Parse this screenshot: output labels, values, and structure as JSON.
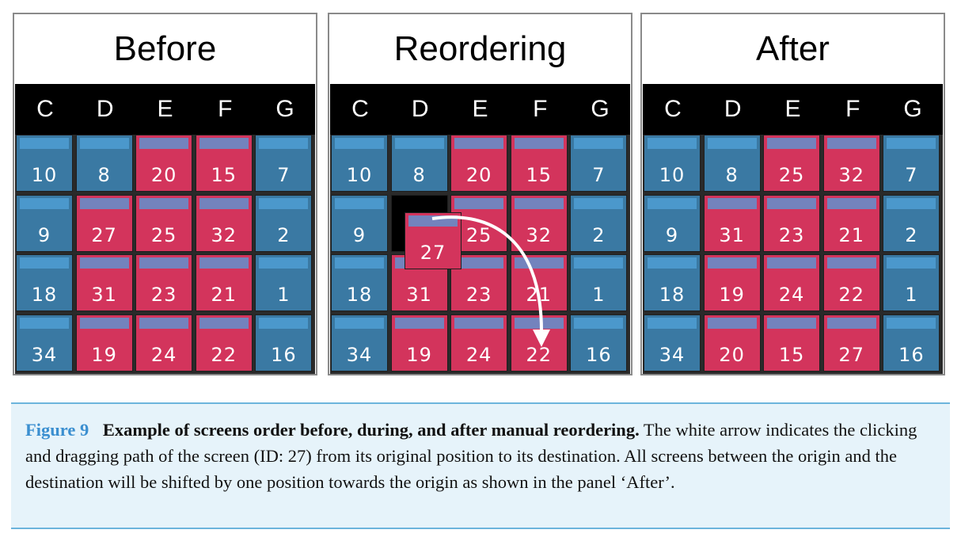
{
  "columns": [
    "C",
    "D",
    "E",
    "F",
    "G"
  ],
  "colors": {
    "blue_cell": "#3a79a3",
    "pink_cell": "#d3345c",
    "arrow": "#ffffff",
    "figure_label": "#3b8fd0"
  },
  "panels": [
    {
      "title": "Before",
      "rows": [
        [
          {
            "id": "10",
            "color": "blue"
          },
          {
            "id": "8",
            "color": "blue"
          },
          {
            "id": "20",
            "color": "pink"
          },
          {
            "id": "15",
            "color": "pink"
          },
          {
            "id": "7",
            "color": "blue"
          }
        ],
        [
          {
            "id": "9",
            "color": "blue"
          },
          {
            "id": "27",
            "color": "pink"
          },
          {
            "id": "25",
            "color": "pink"
          },
          {
            "id": "32",
            "color": "pink"
          },
          {
            "id": "2",
            "color": "blue"
          }
        ],
        [
          {
            "id": "18",
            "color": "blue"
          },
          {
            "id": "31",
            "color": "pink"
          },
          {
            "id": "23",
            "color": "pink"
          },
          {
            "id": "21",
            "color": "pink"
          },
          {
            "id": "1",
            "color": "blue"
          }
        ],
        [
          {
            "id": "34",
            "color": "blue"
          },
          {
            "id": "19",
            "color": "pink"
          },
          {
            "id": "24",
            "color": "pink"
          },
          {
            "id": "22",
            "color": "pink"
          },
          {
            "id": "16",
            "color": "blue"
          }
        ]
      ]
    },
    {
      "title": "Reordering",
      "rows": [
        [
          {
            "id": "10",
            "color": "blue"
          },
          {
            "id": "8",
            "color": "blue"
          },
          {
            "id": "20",
            "color": "pink"
          },
          {
            "id": "15",
            "color": "pink"
          },
          {
            "id": "7",
            "color": "blue"
          }
        ],
        [
          {
            "id": "9",
            "color": "blue"
          },
          {
            "id": "",
            "color": "empty"
          },
          {
            "id": "25",
            "color": "pink"
          },
          {
            "id": "32",
            "color": "pink"
          },
          {
            "id": "2",
            "color": "blue"
          }
        ],
        [
          {
            "id": "18",
            "color": "blue"
          },
          {
            "id": "31",
            "color": "pink"
          },
          {
            "id": "23",
            "color": "pink"
          },
          {
            "id": "21",
            "color": "pink"
          },
          {
            "id": "1",
            "color": "blue"
          }
        ],
        [
          {
            "id": "34",
            "color": "blue"
          },
          {
            "id": "19",
            "color": "pink"
          },
          {
            "id": "24",
            "color": "pink"
          },
          {
            "id": "22",
            "color": "pink"
          },
          {
            "id": "16",
            "color": "blue"
          }
        ]
      ],
      "dragged": {
        "id": "27",
        "color": "pink"
      }
    },
    {
      "title": "After",
      "rows": [
        [
          {
            "id": "10",
            "color": "blue"
          },
          {
            "id": "8",
            "color": "blue"
          },
          {
            "id": "25",
            "color": "pink"
          },
          {
            "id": "32",
            "color": "pink"
          },
          {
            "id": "7",
            "color": "blue"
          }
        ],
        [
          {
            "id": "9",
            "color": "blue"
          },
          {
            "id": "31",
            "color": "pink"
          },
          {
            "id": "23",
            "color": "pink"
          },
          {
            "id": "21",
            "color": "pink"
          },
          {
            "id": "2",
            "color": "blue"
          }
        ],
        [
          {
            "id": "18",
            "color": "blue"
          },
          {
            "id": "19",
            "color": "pink"
          },
          {
            "id": "24",
            "color": "pink"
          },
          {
            "id": "22",
            "color": "pink"
          },
          {
            "id": "1",
            "color": "blue"
          }
        ],
        [
          {
            "id": "34",
            "color": "blue"
          },
          {
            "id": "20",
            "color": "pink"
          },
          {
            "id": "15",
            "color": "pink"
          },
          {
            "id": "27",
            "color": "pink"
          },
          {
            "id": "16",
            "color": "blue"
          }
        ]
      ]
    }
  ],
  "caption": {
    "label": "Figure 9",
    "title": "Example of screens order before, during, and after manual reordering.",
    "text": "The white arrow indicates the clicking and dragging path of the screen (ID: 27) from its original position to its destination. All screens between the origin and the destination will be shifted by one position towards the origin as shown in the panel ‘After’."
  }
}
